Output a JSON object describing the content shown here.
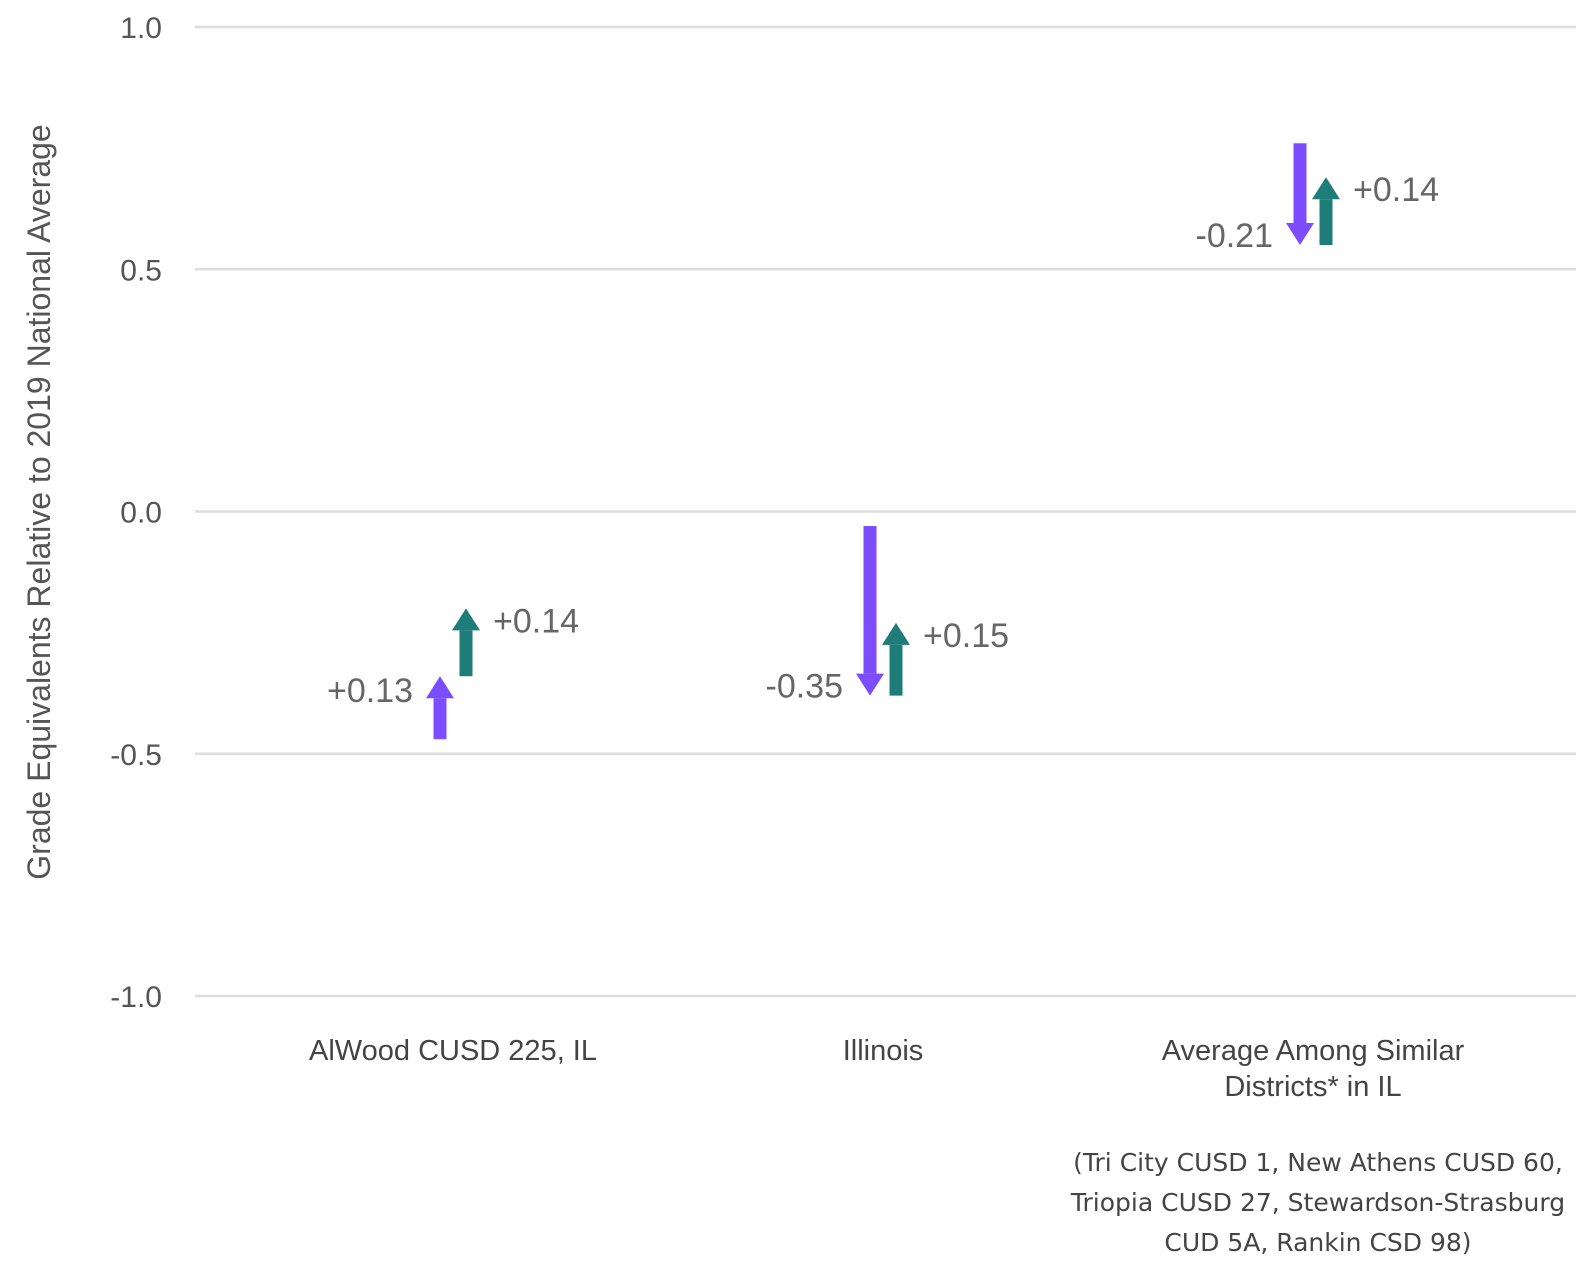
{
  "chart_data": {
    "type": "arrow",
    "title": "",
    "ylabel": "Grade Equivalents Relative to 2019 National Average",
    "xlabel": "",
    "ylim": [
      -1.0,
      1.0
    ],
    "yticks": [
      1.0,
      0.5,
      0.0,
      -0.5,
      -1.0
    ],
    "ytick_labels": [
      "1.0",
      "0.5",
      "0.0",
      "-0.5",
      "-1.0"
    ],
    "grid": true,
    "colors": {
      "purple": "#7c4dff",
      "teal": "#1e7d78",
      "grid": "#dddddd"
    },
    "categories": [
      {
        "label_lines": [
          "AlWood CUSD 225, IL"
        ],
        "arrows": [
          {
            "from": -0.47,
            "to": -0.34,
            "label": "+0.13",
            "color": "purple",
            "label_side": "left"
          },
          {
            "from": -0.34,
            "to": -0.2,
            "label": "+0.14",
            "color": "teal",
            "label_side": "right"
          }
        ]
      },
      {
        "label_lines": [
          "Illinois"
        ],
        "arrows": [
          {
            "from": -0.03,
            "to": -0.38,
            "label": "-0.35",
            "color": "purple",
            "label_side": "left"
          },
          {
            "from": -0.38,
            "to": -0.23,
            "label": "+0.15",
            "color": "teal",
            "label_side": "right"
          }
        ]
      },
      {
        "label_lines": [
          "Average Among Similar",
          "Districts* in IL"
        ],
        "arrows": [
          {
            "from": 0.76,
            "to": 0.55,
            "label": "-0.21",
            "color": "purple",
            "label_side": "left"
          },
          {
            "from": 0.55,
            "to": 0.69,
            "label": "+0.14",
            "color": "teal",
            "label_side": "right"
          }
        ]
      }
    ],
    "footnote_lines": [
      "(Tri City CUSD 1, New Athens CUSD 60,",
      "Triopia CUSD 27, Stewardson-Strasburg",
      "CUD 5A, Rankin CSD 98)"
    ]
  }
}
